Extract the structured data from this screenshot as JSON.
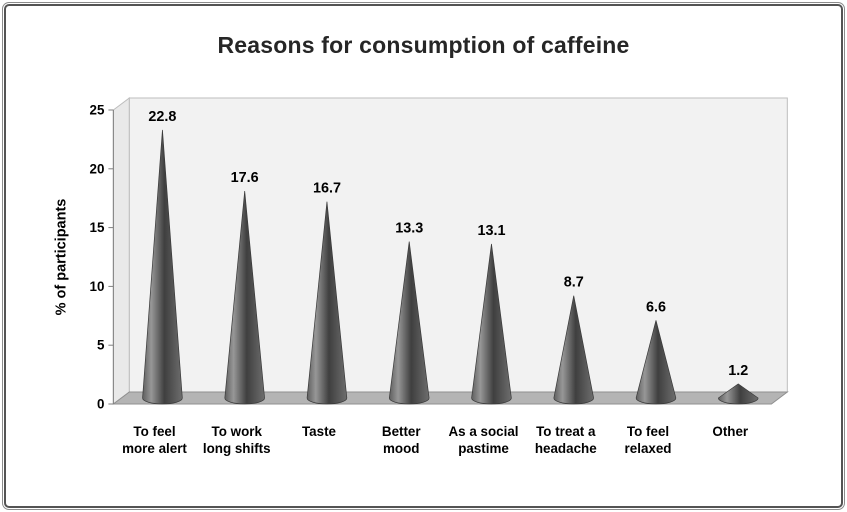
{
  "chart_data": {
    "type": "bar",
    "variant": "3d-cone",
    "title": "Reasons for consumption of caffeine",
    "ylabel": "% of participants",
    "xlabel": "",
    "categories": [
      "To feel more alert",
      "To work long shifts",
      "Taste",
      "Better mood",
      "As a social pastime",
      "To treat a headache",
      "To feel relaxed",
      "Other"
    ],
    "label_lines": [
      [
        "To feel",
        "more alert"
      ],
      [
        "To work",
        "long shifts"
      ],
      [
        "Taste"
      ],
      [
        "Better",
        "mood"
      ],
      [
        "As a social",
        "pastime"
      ],
      [
        "To treat a",
        "headache"
      ],
      [
        "To feel",
        "relaxed"
      ],
      [
        "Other"
      ]
    ],
    "values": [
      22.8,
      17.6,
      16.7,
      13.3,
      13.1,
      8.7,
      6.6,
      1.2
    ],
    "value_labels": [
      "22.8",
      "17.6",
      "16.7",
      "13.3",
      "13.1",
      "8.7",
      "6.6",
      "1.2"
    ],
    "ylim": [
      0,
      25
    ],
    "yticks": [
      0,
      5,
      10,
      15,
      20,
      25
    ],
    "grid": false,
    "legend": false,
    "colors": {
      "cone_edge_left": "#5f5f5f",
      "cone_highlight": "#979797",
      "cone_core": "#3f3f3f",
      "cone_edge_right": "#6e6e6e",
      "cone_stroke": "#3a3a3a",
      "floor": "#b4b4b4",
      "floor_stroke": "#8f8f8f",
      "wall": "#f2f2f2",
      "side_wall": "#e9e9e9",
      "wall_stroke": "#bdbdbd",
      "axis": "#7f7f7f",
      "text": "#000000",
      "title": "#262626",
      "frame_border": "#545454"
    }
  }
}
